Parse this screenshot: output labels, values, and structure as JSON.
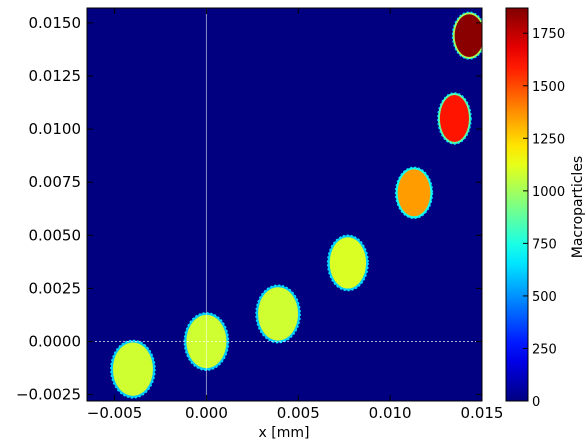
{
  "chart_data": {
    "type": "heatmap",
    "xlabel": "x [mm]",
    "ylabel": "",
    "xlim": [
      -0.0065,
      0.015
    ],
    "ylim": [
      -0.0028,
      0.0157
    ],
    "x_ticks": [
      -0.005,
      0.0,
      0.005,
      0.01,
      0.015
    ],
    "x_tick_labels": [
      "−0.005",
      "0.000",
      "0.005",
      "0.010",
      "0.015"
    ],
    "y_ticks": [
      -0.0025,
      0.0,
      0.0025,
      0.005,
      0.0075,
      0.01,
      0.0125,
      0.015
    ],
    "y_tick_labels": [
      "−0.0025",
      "0.0000",
      "0.0025",
      "0.0050",
      "0.0075",
      "0.0100",
      "0.0125",
      "0.0150"
    ],
    "background_value": 0,
    "crosshair": {
      "x": 0.0,
      "y": 0.0
    },
    "colorbar": {
      "label": "Macroparticles",
      "range": [
        0,
        1870
      ],
      "ticks": [
        0,
        250,
        500,
        750,
        1000,
        1250,
        1500,
        1750
      ],
      "tick_labels": [
        "0",
        "250",
        "500",
        "750",
        "1000",
        "1250",
        "1500",
        "1750"
      ],
      "colormap": "jet"
    },
    "blobs": [
      {
        "x": -0.004,
        "y": -0.0013,
        "rx": 0.0012,
        "ry": 0.00135,
        "value": 1080
      },
      {
        "x": 0.0,
        "y": 0.0,
        "rx": 0.0012,
        "ry": 0.00135,
        "value": 1080
      },
      {
        "x": 0.0039,
        "y": 0.0013,
        "rx": 0.0012,
        "ry": 0.00135,
        "value": 1080
      },
      {
        "x": 0.0077,
        "y": 0.0037,
        "rx": 0.0011,
        "ry": 0.0013,
        "value": 1100
      },
      {
        "x": 0.0113,
        "y": 0.007,
        "rx": 0.001,
        "ry": 0.0012,
        "value": 1350
      },
      {
        "x": 0.0135,
        "y": 0.0105,
        "rx": 0.0009,
        "ry": 0.0012,
        "value": 1600
      },
      {
        "x": 0.0143,
        "y": 0.0144,
        "rx": 0.0009,
        "ry": 0.0011,
        "value": 1850
      }
    ]
  }
}
